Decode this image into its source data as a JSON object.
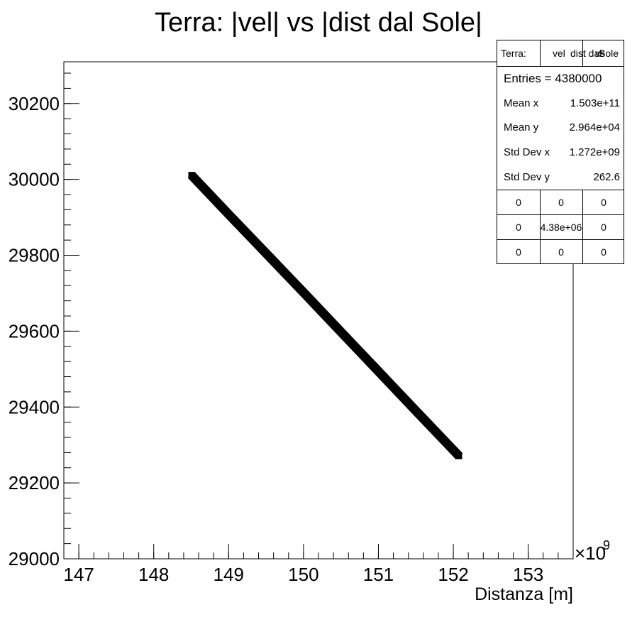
{
  "chart_data": {
    "type": "scatter",
    "title": "Terra: |vel| vs |dist dal Sole|",
    "xlabel": "Distanza [m]",
    "ylabel": "",
    "x_multiplier": "×10",
    "x_multiplier_exp": "9",
    "xlim": [
      146.8,
      153.6
    ],
    "ylim": [
      29000,
      30310
    ],
    "x_ticks": [
      147,
      148,
      149,
      150,
      151,
      152,
      153
    ],
    "y_ticks": [
      29000,
      29200,
      29400,
      29600,
      29800,
      30000,
      30200
    ],
    "series": [
      {
        "x": [
          148.5,
          149.0,
          149.5,
          150.0,
          150.5,
          151.0,
          151.5,
          152.08
        ],
        "y": [
          30012,
          29908,
          29805,
          29702,
          29598,
          29494,
          29390,
          29270
        ]
      }
    ]
  },
  "stats": {
    "header": [
      "Terra:",
      "vel",
      "dist dal",
      "Sole"
    ],
    "header_extra": "vs",
    "entries_label": "Entries = 4380000",
    "rows": [
      {
        "label": "Mean x",
        "value": "1.503e+11"
      },
      {
        "label": "Mean y",
        "value": "2.964e+04"
      },
      {
        "label": "Std Dev x",
        "value": "1.272e+09"
      },
      {
        "label": "Std Dev y",
        "value": "262.6"
      }
    ],
    "grid": [
      [
        "0",
        "0",
        "0"
      ],
      [
        "0",
        "4.38e+06",
        "0"
      ],
      [
        "0",
        "0",
        "0"
      ]
    ]
  }
}
